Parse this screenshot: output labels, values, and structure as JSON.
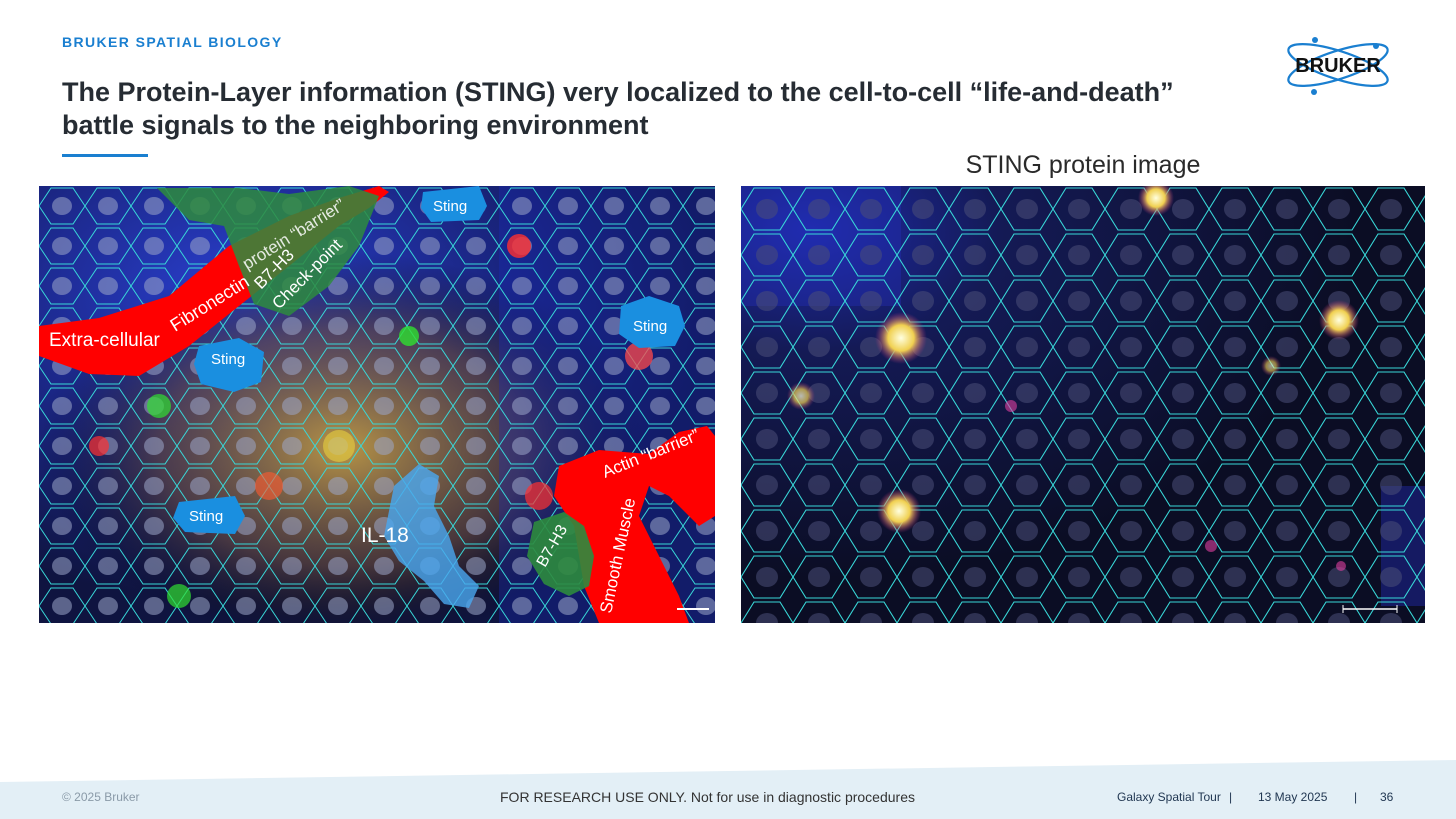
{
  "header": {
    "kicker": "BRUKER SPATIAL BIOLOGY",
    "title": "The Protein-Layer information (STING) very localized to the cell-to-cell “life-and-death” battle signals to the neighboring environment",
    "logo_text": "BRUKER"
  },
  "left_panel": {
    "labels": {
      "extra_cellular": "Extra-cellular",
      "fibronectin": "Fibronectin",
      "protein_barrier": "protein “barrier”",
      "b7h3_top": "B7-H3",
      "check_point": "Check-point",
      "sting_1": "Sting",
      "sting_2": "Sting",
      "sting_3": "Sting",
      "sting_4": "Sting",
      "il18": "IL-18",
      "b7h3_bottom": "B7-H3",
      "smooth_muscle": "Smooth Muscle",
      "actin_barrier": "Actin “barrier”"
    }
  },
  "right_panel": {
    "caption": "STING protein image"
  },
  "footer": {
    "copyright": "© 2025 Bruker",
    "disclaimer": "FOR RESEARCH USE ONLY. Not for use in diagnostic procedures",
    "event": "Galaxy Spatial Tour",
    "separator": "|",
    "date": "13 May 2025",
    "page": "36"
  },
  "colors": {
    "accent": "#1a7fd0",
    "title": "#262c33",
    "segmentation": "#38d8d8",
    "annotation_red": "#ff0000",
    "annotation_green": "#2e8b3e",
    "annotation_blue": "#1a8fe0",
    "footer_band": "#e3eff6"
  }
}
